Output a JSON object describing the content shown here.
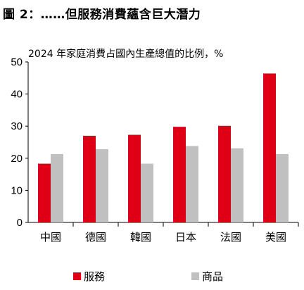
{
  "figure_title": "圖 2：……但服務消費蘊含巨大潛力",
  "chart_data": {
    "type": "bar",
    "title": "2024 年家庭消費占國內生產總值的比例，%",
    "categories": [
      "中國",
      "德國",
      "韓國",
      "日本",
      "法國",
      "美國"
    ],
    "series": [
      {
        "name": "服務",
        "color": "#e00015",
        "values": [
          18.3,
          27.0,
          27.3,
          29.8,
          30.1,
          46.4
        ]
      },
      {
        "name": "商品",
        "color": "#c0c0c0",
        "values": [
          21.3,
          22.8,
          18.3,
          23.8,
          23.1,
          21.3
        ]
      }
    ],
    "ylim": [
      0,
      50
    ],
    "yticks": [
      0,
      10,
      20,
      30,
      40,
      50
    ],
    "grid": false,
    "legend_position": "bottom"
  }
}
